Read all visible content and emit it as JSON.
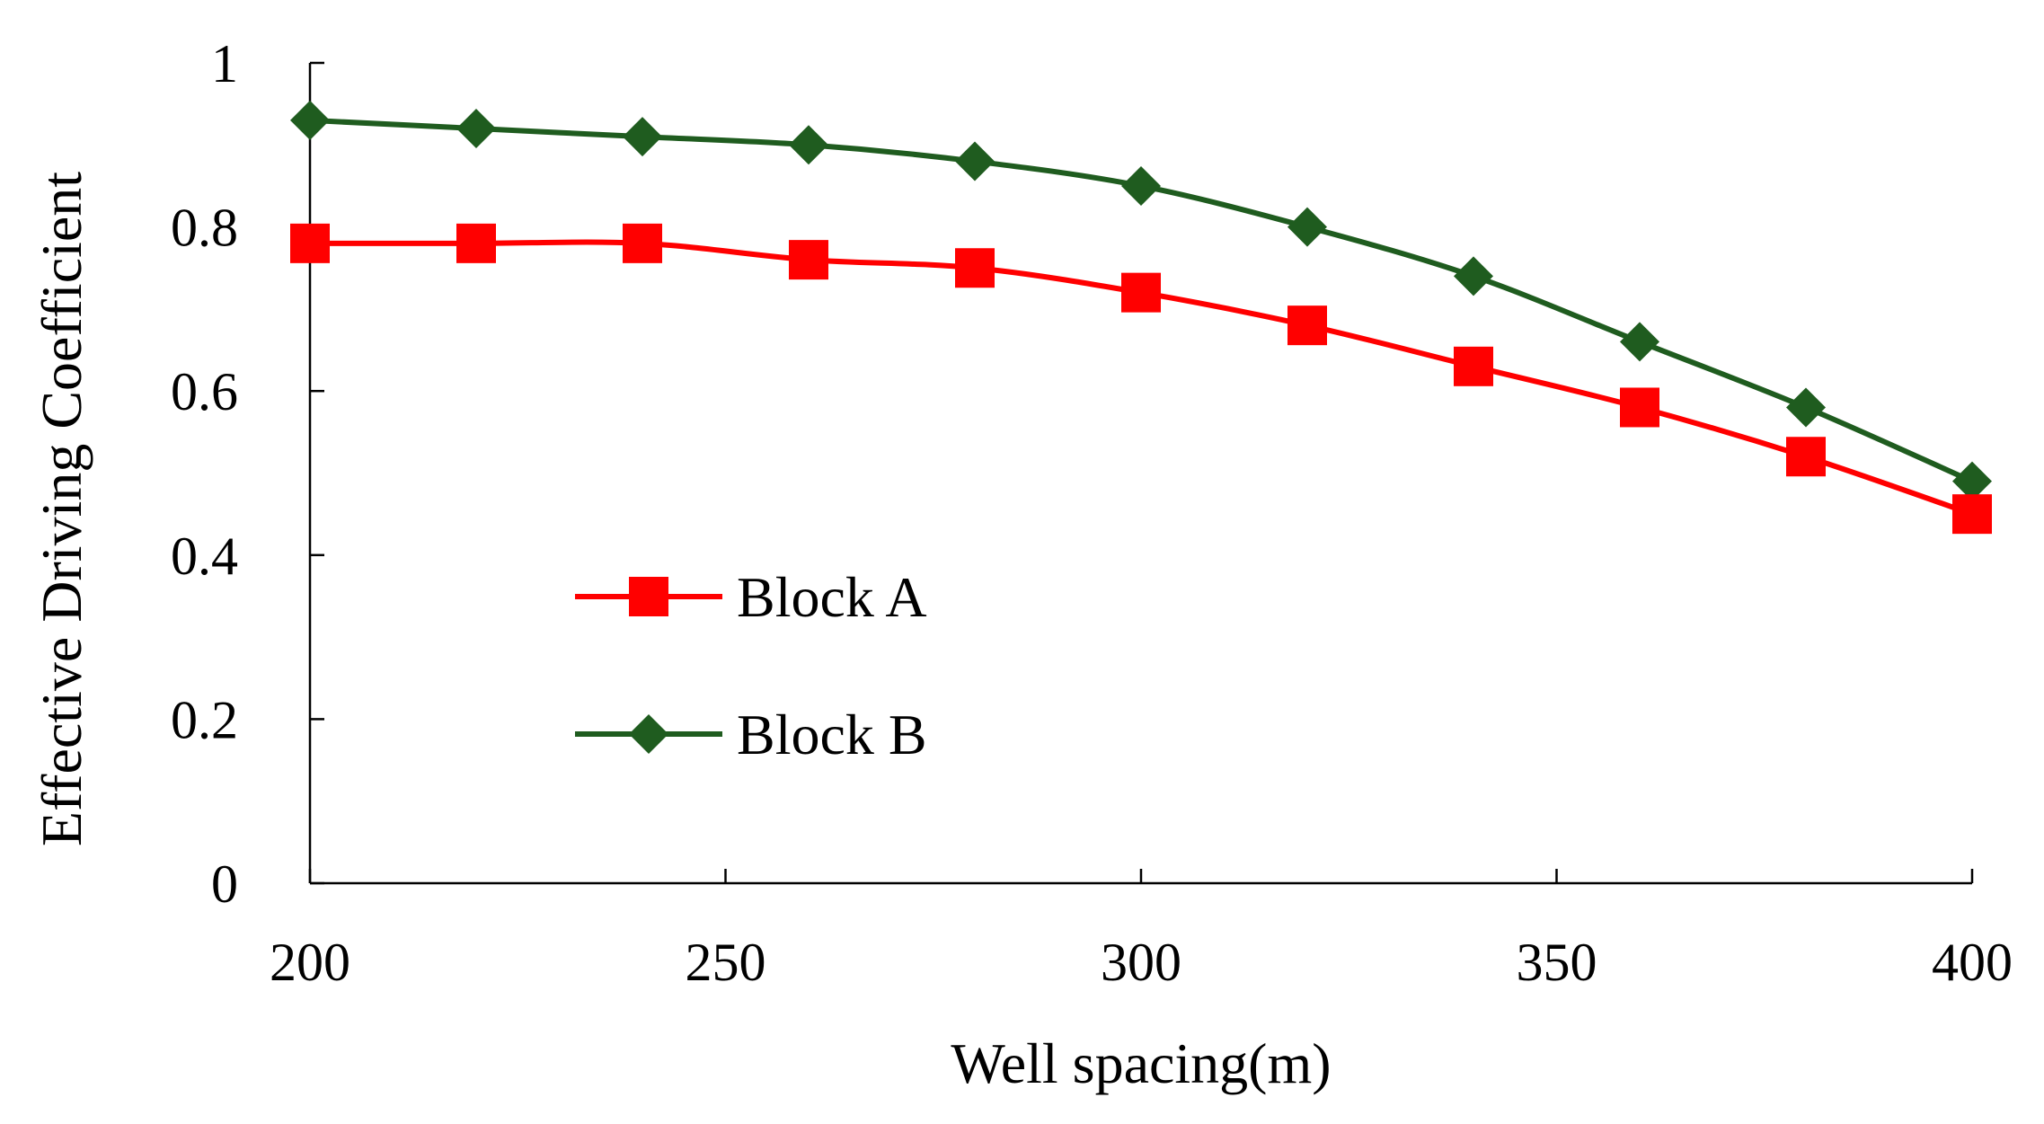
{
  "chart_data": {
    "type": "line",
    "title": "",
    "xlabel": "Well spacing(m)",
    "ylabel": "Effective Driving Coefficient",
    "xlim": [
      200,
      400
    ],
    "ylim": [
      0,
      1
    ],
    "x_ticks": [
      200,
      250,
      300,
      350,
      400
    ],
    "y_ticks": [
      0,
      0.2,
      0.4,
      0.6,
      0.8,
      1
    ],
    "x_tick_labels": [
      "200",
      "250",
      "300",
      "350",
      "400"
    ],
    "y_tick_labels": [
      "0",
      "0.2",
      "0.4",
      "0.6",
      "0.8",
      "1"
    ],
    "grid": false,
    "legend_position": "lower-left",
    "x": [
      200,
      220,
      240,
      260,
      280,
      300,
      320,
      340,
      360,
      380,
      400
    ],
    "series": [
      {
        "name": "Block A",
        "color": "#ff0000",
        "marker": "square",
        "values": [
          0.78,
          0.78,
          0.78,
          0.76,
          0.75,
          0.72,
          0.68,
          0.63,
          0.58,
          0.52,
          0.45
        ]
      },
      {
        "name": "Block B",
        "color": "#1f5c1f",
        "marker": "diamond",
        "values": [
          0.93,
          0.92,
          0.91,
          0.9,
          0.88,
          0.85,
          0.8,
          0.74,
          0.66,
          0.58,
          0.49
        ]
      }
    ]
  }
}
